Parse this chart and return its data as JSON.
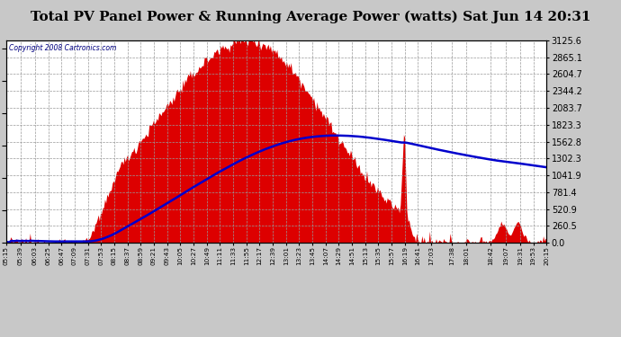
{
  "title": "Total PV Panel Power & Running Average Power (watts) Sat Jun 14 20:31",
  "copyright": "Copyright 2008 Cartronics.com",
  "bg_color": "#c8c8c8",
  "plot_bg_color": "#ffffff",
  "fill_color": "#dd0000",
  "line_color": "#0000cc",
  "grid_color": "#a0a0a0",
  "title_color": "#000000",
  "title_fontsize": 11,
  "ylabel_right": [
    "0.0",
    "260.5",
    "520.9",
    "781.4",
    "1041.9",
    "1302.3",
    "1562.8",
    "1823.3",
    "2083.7",
    "2344.2",
    "2604.7",
    "2865.1",
    "3125.6"
  ],
  "ymax": 3125.6,
  "x_labels": [
    "05:15",
    "05:39",
    "06:03",
    "06:25",
    "06:47",
    "07:09",
    "07:31",
    "07:53",
    "08:15",
    "08:37",
    "08:59",
    "09:21",
    "09:43",
    "10:05",
    "10:27",
    "10:49",
    "11:11",
    "11:33",
    "11:55",
    "12:17",
    "12:39",
    "13:01",
    "13:23",
    "13:45",
    "14:07",
    "14:29",
    "14:51",
    "15:13",
    "15:35",
    "15:57",
    "16:19",
    "16:41",
    "17:03",
    "17:38",
    "18:01",
    "18:42",
    "19:07",
    "19:31",
    "19:53",
    "20:15"
  ]
}
